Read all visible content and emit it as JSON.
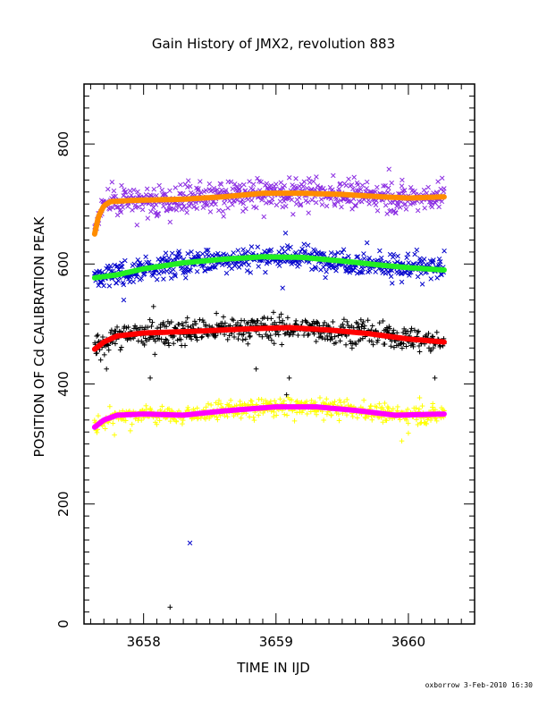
{
  "chart_data": {
    "type": "scatter",
    "title": "Gain History of JMX2, revolution 883",
    "xlabel": "TIME IN IJD",
    "ylabel": "POSITION OF Cd CALIBRATION PEAK",
    "xlim": [
      3657.55,
      3660.5
    ],
    "ylim": [
      0,
      900
    ],
    "xticks": [
      3658,
      3659,
      3660
    ],
    "xtick_labels": [
      "3658",
      "3659",
      "3660"
    ],
    "yticks": [
      0,
      200,
      400,
      600,
      800
    ],
    "ytick_labels": [
      "0",
      "200",
      "400",
      "600",
      "800"
    ],
    "grid": false,
    "legend": "none",
    "footer": "oxborrow  3-Feb-2010 16:30",
    "x_start": 3657.63,
    "x_end": 3660.27,
    "series": [
      {
        "marker": "x",
        "color": "#8a2be2",
        "fit_color": "#ff8c00",
        "fit": [
          [
            3657.63,
            650
          ],
          [
            3657.66,
            680
          ],
          [
            3657.7,
            697
          ],
          [
            3657.75,
            704
          ],
          [
            3657.9,
            706
          ],
          [
            3658.3,
            708
          ],
          [
            3658.6,
            712
          ],
          [
            3658.9,
            718
          ],
          [
            3659.2,
            718
          ],
          [
            3659.5,
            716
          ],
          [
            3659.8,
            712
          ],
          [
            3660.0,
            710
          ],
          [
            3660.27,
            712
          ]
        ],
        "scatter": 20,
        "glitches": [
          [
            3657.95,
            665
          ],
          [
            3658.1,
            680
          ],
          [
            3658.2,
            670
          ],
          [
            3659.05,
            695
          ]
        ]
      },
      {
        "marker": "x",
        "color": "#0000cc",
        "fit_color": "#22ee22",
        "fit": [
          [
            3657.63,
            577
          ],
          [
            3657.8,
            582
          ],
          [
            3658.0,
            592
          ],
          [
            3658.3,
            602
          ],
          [
            3658.6,
            608
          ],
          [
            3658.9,
            612
          ],
          [
            3659.2,
            611
          ],
          [
            3659.5,
            605
          ],
          [
            3659.8,
            598
          ],
          [
            3660.0,
            594
          ],
          [
            3660.27,
            590
          ]
        ],
        "scatter": 18,
        "glitches": [
          [
            3657.85,
            540
          ],
          [
            3658.15,
            575
          ],
          [
            3659.05,
            560
          ],
          [
            3659.95,
            570
          ],
          [
            3658.35,
            135
          ]
        ]
      },
      {
        "marker": "+",
        "color": "#000000",
        "fit_color": "#ff0000",
        "fit": [
          [
            3657.63,
            458
          ],
          [
            3657.7,
            470
          ],
          [
            3657.8,
            480
          ],
          [
            3658.0,
            485
          ],
          [
            3658.4,
            488
          ],
          [
            3658.8,
            492
          ],
          [
            3659.1,
            494
          ],
          [
            3659.4,
            490
          ],
          [
            3659.7,
            484
          ],
          [
            3660.0,
            475
          ],
          [
            3660.27,
            470
          ]
        ],
        "scatter": 18,
        "glitches": [
          [
            3657.72,
            425
          ],
          [
            3658.05,
            410
          ],
          [
            3658.85,
            425
          ],
          [
            3659.08,
            382
          ],
          [
            3659.1,
            410
          ],
          [
            3660.2,
            410
          ],
          [
            3658.2,
            28
          ]
        ]
      },
      {
        "marker": "+",
        "color": "#ffff00",
        "fit_color": "#ff00ff",
        "fit": [
          [
            3657.63,
            328
          ],
          [
            3657.7,
            340
          ],
          [
            3657.8,
            348
          ],
          [
            3658.0,
            350
          ],
          [
            3658.3,
            348
          ],
          [
            3658.6,
            355
          ],
          [
            3659.0,
            362
          ],
          [
            3659.3,
            362
          ],
          [
            3659.6,
            356
          ],
          [
            3659.9,
            348
          ],
          [
            3660.27,
            350
          ]
        ],
        "scatter": 12,
        "glitches": [
          [
            3657.78,
            315
          ],
          [
            3657.9,
            322
          ],
          [
            3659.95,
            305
          ],
          [
            3660.0,
            318
          ]
        ]
      }
    ]
  }
}
